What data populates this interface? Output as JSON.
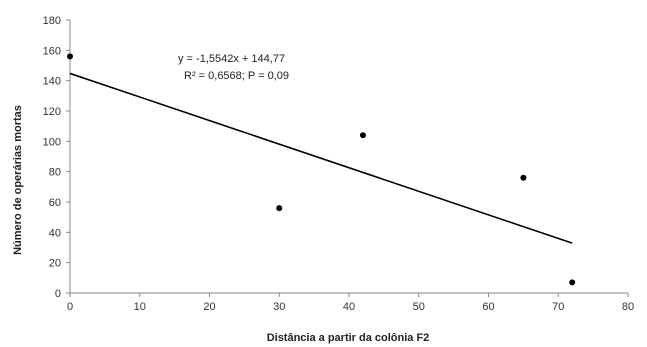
{
  "chart_data": {
    "type": "scatter",
    "xlabel": "Distância a partir da colônia F2",
    "ylabel": "Número de operárias mortas",
    "xlim": [
      0,
      80
    ],
    "ylim": [
      0,
      180
    ],
    "xticks": [
      "0",
      "10",
      "20",
      "30",
      "40",
      "50",
      "60",
      "70",
      "80"
    ],
    "yticks": [
      "0",
      "20",
      "40",
      "60",
      "80",
      "100",
      "120",
      "140",
      "160",
      "180"
    ],
    "points": [
      {
        "x": 0,
        "y": 156
      },
      {
        "x": 30,
        "y": 56
      },
      {
        "x": 42,
        "y": 104
      },
      {
        "x": 65,
        "y": 76
      },
      {
        "x": 72,
        "y": 7
      }
    ],
    "trendline": {
      "slope": -1.5542,
      "intercept": 144.77,
      "x_range": [
        0,
        72
      ]
    },
    "annotations": {
      "equation": "y = -1,5542x + 144,77",
      "stats": "R² = 0,6568; P = 0,09"
    },
    "grid": false,
    "colors": {
      "axis": "#888888",
      "points": "#000000",
      "trendline": "#000000"
    }
  }
}
